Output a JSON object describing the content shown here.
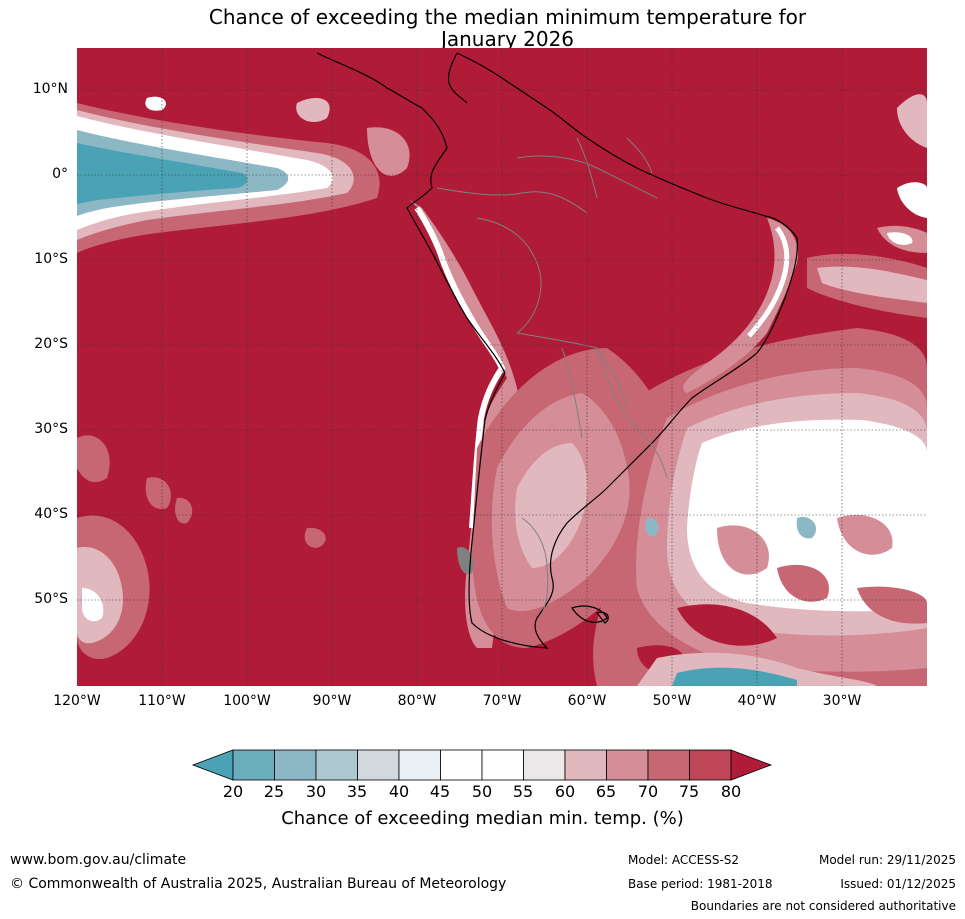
{
  "title": {
    "line1": "Chance of exceeding the median minimum temperature for",
    "line2": "January 2026"
  },
  "axes": {
    "lat_labels": [
      "10°N",
      "0°",
      "10°S",
      "20°S",
      "30°S",
      "40°S",
      "50°S"
    ],
    "lon_labels": [
      "120°W",
      "110°W",
      "100°W",
      "90°W",
      "80°W",
      "70°W",
      "60°W",
      "50°W",
      "40°W",
      "30°W"
    ]
  },
  "colorbar": {
    "ticks": [
      "20",
      "25",
      "30",
      "35",
      "40",
      "45",
      "50",
      "55",
      "60",
      "65",
      "70",
      "75",
      "80"
    ],
    "colors": [
      "#4aa3b5",
      "#6aaebb",
      "#8cb8c5",
      "#adc8cf",
      "#d2d9dc",
      "#eaf0f3",
      "#ffffff",
      "#ffffff",
      "#ebe8ea",
      "#e2b8bf",
      "#d58d97",
      "#c76773",
      "#bf4656",
      "#b01b37"
    ],
    "label": "Chance of exceeding median min. temp. (%)"
  },
  "map_colors": {
    "high": "#b01b37",
    "mid_high": "#c76773",
    "mid": "#d58d97",
    "light": "#e2b8bf",
    "neutral": "#ffffff",
    "cool": "#4aa3b5",
    "cool_light": "#8cb8c5",
    "land_outline": "#000000",
    "border": "#808080"
  },
  "footer": {
    "website": "www.bom.gov.au/climate",
    "copyright": "© Commonwealth of Australia 2025, Australian Bureau of Meteorology",
    "model": "Model: ACCESS-S2",
    "base_period": "Base period: 1981-2018",
    "model_run": "Model run: 29/11/2025",
    "issued": "Issued: 01/12/2025",
    "disclaimer": "Boundaries are not considered authoritative"
  }
}
